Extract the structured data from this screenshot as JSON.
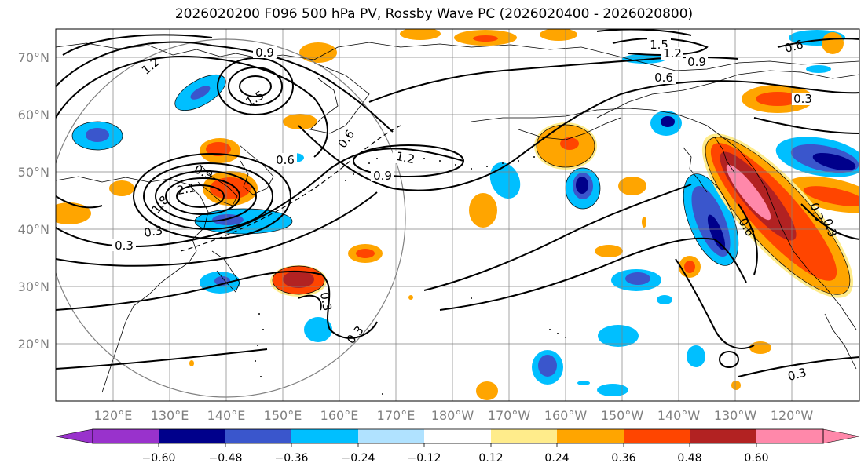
{
  "title": "2026020200 F096 500 hPa PV, Rossby Wave PC (2026020400 - 2026020800)",
  "lat_labels": [
    "70°N",
    "60°N",
    "50°N",
    "40°N",
    "30°N",
    "20°N"
  ],
  "lon_labels": [
    "120°E",
    "130°E",
    "140°E",
    "150°E",
    "160°E",
    "170°E",
    "180°W",
    "170°W",
    "160°W",
    "150°W",
    "140°W",
    "130°W",
    "120°W"
  ],
  "colorbar": {
    "ticks": [
      "−0.60",
      "−0.48",
      "−0.36",
      "−0.24",
      "−0.12",
      "0.12",
      "0.24",
      "0.36",
      "0.48",
      "0.60"
    ],
    "colors": [
      "#9932cc",
      "#00008b",
      "#3a56cc",
      "#00bfff",
      "#b0e2ff",
      "#ffffff",
      "#ffec8b",
      "#ffa500",
      "#ff4500",
      "#b22222",
      "#ff88aa"
    ]
  },
  "contour_labels": [
    "1.5",
    "1.2",
    "0.9",
    "0.6",
    "0.3",
    "0.9",
    "1.5",
    "1.2",
    "0.6",
    "0.6",
    "1.2",
    "0.9",
    "2.1",
    "1.8",
    "0.9",
    "0.3",
    "0.3",
    "0.3",
    "0.3",
    "0.6",
    "0.3",
    "0.3",
    "0.3",
    "0.6"
  ]
}
